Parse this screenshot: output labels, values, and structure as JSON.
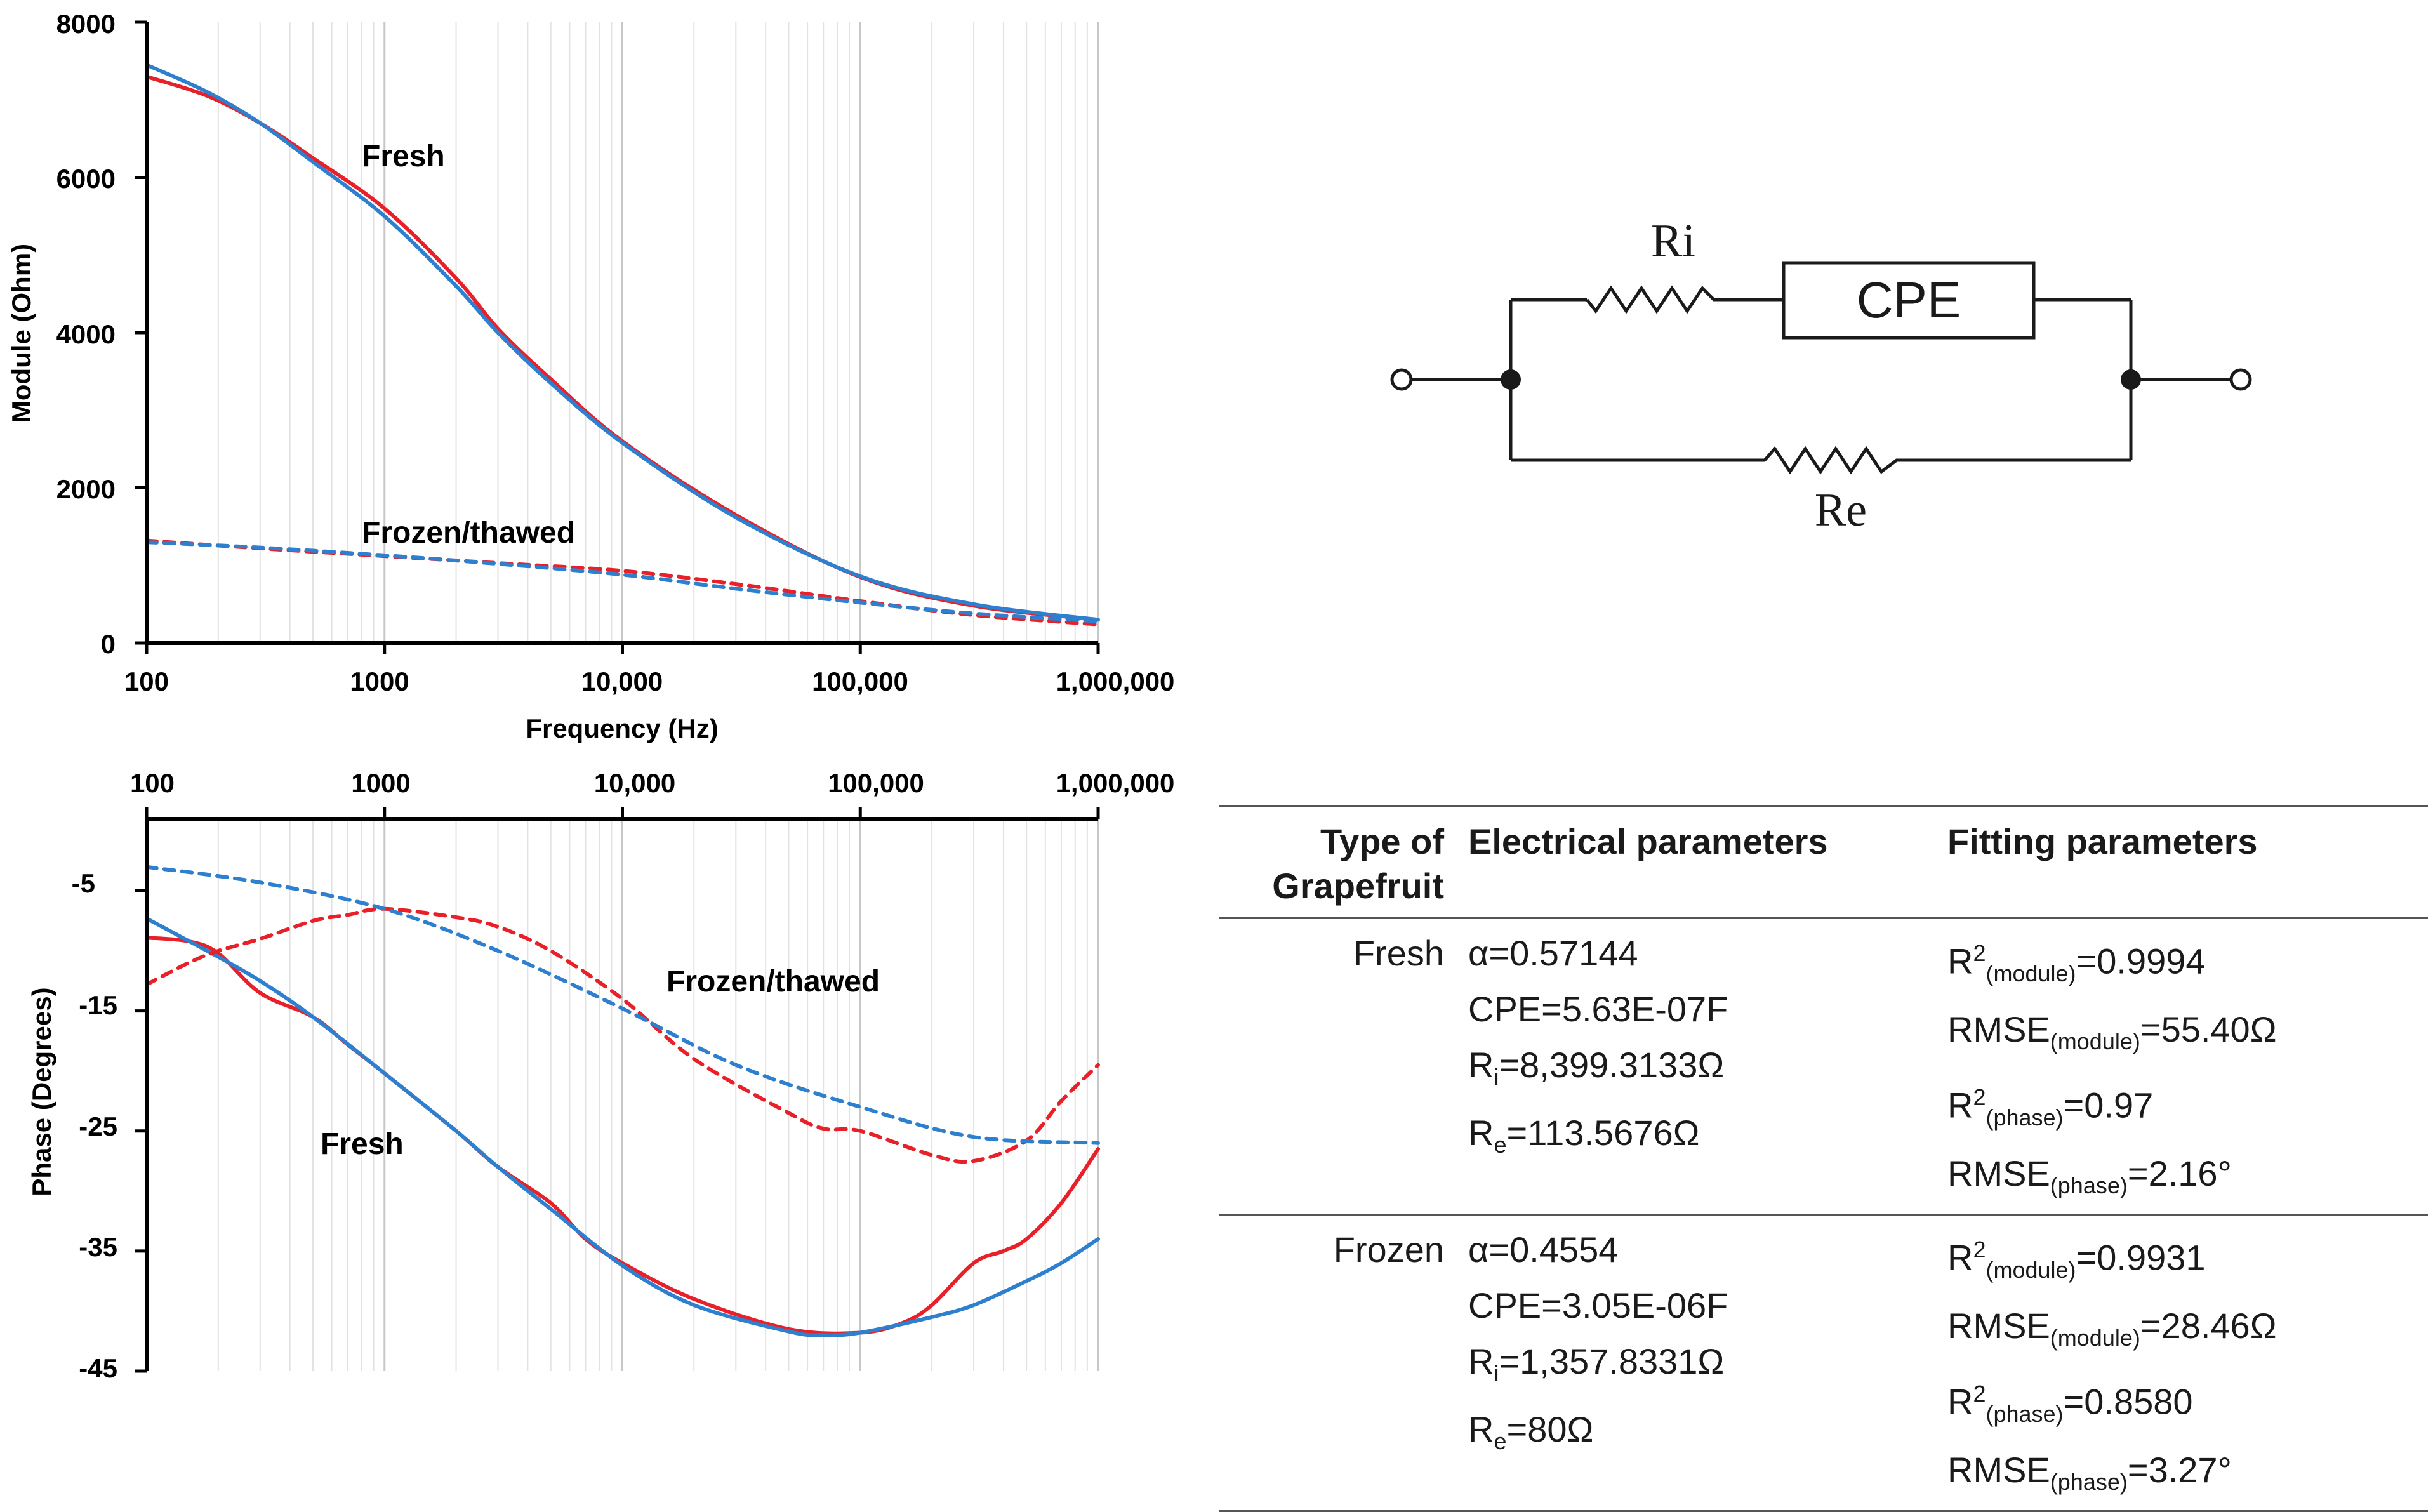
{
  "charts": {
    "module": {
      "ylabel": "Module (Ohm)",
      "xlabel": "Frequency (Hz)",
      "y_ticks": [
        "0",
        "2000",
        "4000",
        "6000",
        "8000"
      ],
      "x_ticks": [
        "100",
        "1000",
        "10,000",
        "100,000",
        "1,000,000"
      ],
      "annotation_fresh": "Fresh",
      "annotation_frozen": "Frozen/thawed"
    },
    "phase": {
      "ylabel": "Phase (Degrees)",
      "y_ticks": [
        "-5",
        "-15",
        "-25",
        "-35",
        "-45"
      ],
      "x_ticks": [
        "100",
        "1000",
        "10,000",
        "100,000",
        "1,000,000"
      ],
      "annotation_fresh": "Fresh",
      "annotation_frozen": "Frozen/thawed"
    }
  },
  "circuit": {
    "ri_label": "Ri",
    "cpe_label": "CPE",
    "re_label": "Re"
  },
  "table": {
    "headers": {
      "type_line1": "Type of",
      "type_line2": "Grapefruit",
      "electrical": "Electrical parameters",
      "fitting": "Fitting parameters"
    },
    "fresh": {
      "type": "Fresh",
      "alpha": "α=0.57144",
      "cpe": "CPE=5.63E-07F",
      "ri_prefix": "R",
      "ri_sub": "i",
      "ri_value": "=8,399.3133Ω",
      "re_prefix": "R",
      "re_sub": "e",
      "re_value": "=113.5676Ω",
      "r2m_prefix": "R",
      "r2m_sup": "2",
      "r2m_sub": "(module)",
      "r2m_value": "=0.9994",
      "rmsem_prefix": "RMSE",
      "rmsem_sub": "(module)",
      "rmsem_value": "=55.40Ω",
      "r2p_prefix": "R",
      "r2p_sup": "2",
      "r2p_sub": "(phase)",
      "r2p_value": "=0.97",
      "rmsep_prefix": "RMSE",
      "rmsep_sub": "(phase)",
      "rmsep_value": "=2.16°"
    },
    "frozen": {
      "type": "Frozen",
      "alpha": "α=0.4554",
      "cpe": "CPE=3.05E-06F",
      "ri_prefix": "R",
      "ri_sub": "i",
      "ri_value": "=1,357.8331Ω",
      "re_prefix": "R",
      "re_sub": "e",
      "re_value": "=80Ω",
      "r2m_prefix": "R",
      "r2m_sup": "2",
      "r2m_sub": "(module)",
      "r2m_value": "=0.9931",
      "rmsem_prefix": "RMSE",
      "rmsem_sub": "(module)",
      "rmsem_value": "=28.46Ω",
      "r2p_prefix": "R",
      "r2p_sup": "2",
      "r2p_sub": "(phase)",
      "r2p_value": "=0.8580",
      "rmsep_prefix": "RMSE",
      "rmsep_sub": "(phase)",
      "rmsep_value": "=3.27°"
    }
  },
  "colors": {
    "measured": "#e8202a",
    "fitted": "#2f7fcf",
    "axis": "#000000",
    "grid": "#d0d0d0"
  },
  "chart_data": [
    {
      "type": "line",
      "title": "",
      "xlabel": "Frequency (Hz)",
      "ylabel": "Module (Ohm)",
      "xscale": "log",
      "xlim": [
        100,
        1000000
      ],
      "ylim": [
        0,
        8000
      ],
      "grid": true,
      "series": [
        {
          "name": "Fresh measured",
          "style": "solid",
          "color": "red",
          "x": [
            100,
            180,
            300,
            500,
            1000,
            2000,
            3000,
            5000,
            10000,
            30000,
            100000,
            300000,
            1000000
          ],
          "y": [
            7300,
            7050,
            6700,
            6250,
            5600,
            4700,
            4050,
            3400,
            2600,
            1650,
            850,
            480,
            300
          ]
        },
        {
          "name": "Fresh fitted",
          "style": "solid",
          "color": "blue",
          "x": [
            100,
            180,
            300,
            500,
            1000,
            2000,
            3000,
            5000,
            10000,
            30000,
            100000,
            300000,
            1000000
          ],
          "y": [
            7450,
            7100,
            6700,
            6200,
            5500,
            4600,
            4000,
            3350,
            2580,
            1620,
            860,
            500,
            300
          ]
        },
        {
          "name": "Frozen/thawed measured",
          "style": "dashed",
          "color": "red",
          "x": [
            100,
            300,
            1000,
            3000,
            10000,
            30000,
            100000,
            300000,
            1000000
          ],
          "y": [
            1320,
            1220,
            1120,
            1030,
            930,
            760,
            540,
            360,
            240
          ]
        },
        {
          "name": "Frozen/thawed fitted",
          "style": "dashed",
          "color": "blue",
          "x": [
            100,
            300,
            1000,
            3000,
            10000,
            30000,
            100000,
            300000,
            1000000
          ],
          "y": [
            1300,
            1230,
            1130,
            1020,
            880,
            700,
            520,
            380,
            280
          ]
        }
      ]
    },
    {
      "type": "line",
      "title": "",
      "xlabel": "",
      "ylabel": "Phase (Degrees)",
      "xscale": "log",
      "xlim": [
        100,
        1000000
      ],
      "ylim": [
        -45,
        1
      ],
      "grid": true,
      "series": [
        {
          "name": "Fresh measured",
          "style": "solid",
          "color": "red",
          "x": [
            100,
            150,
            200,
            300,
            500,
            700,
            1000,
            2000,
            3000,
            5000,
            7000,
            10000,
            20000,
            50000,
            100000,
            150000,
            200000,
            300000,
            400000,
            500000,
            700000,
            1000000
          ],
          "y": [
            -8.9,
            -9.2,
            -10.2,
            -13.5,
            -15.5,
            -17.8,
            -20.2,
            -25,
            -28,
            -31,
            -34,
            -36,
            -39,
            -41.5,
            -41.8,
            -41,
            -39.5,
            -36,
            -35,
            -34,
            -31,
            -26.5
          ]
        },
        {
          "name": "Fresh fitted",
          "style": "solid",
          "color": "blue",
          "x": [
            100,
            200,
            300,
            500,
            1000,
            2000,
            3000,
            5000,
            10000,
            20000,
            50000,
            70000,
            100000,
            200000,
            300000,
            500000,
            700000,
            1000000
          ],
          "y": [
            -7.3,
            -10.5,
            -12.5,
            -15.5,
            -20.2,
            -25,
            -28,
            -31.5,
            -36.2,
            -39.5,
            -41.7,
            -42,
            -41.8,
            -40.5,
            -39.5,
            -37.5,
            -36,
            -34
          ]
        },
        {
          "name": "Frozen/thawed measured",
          "style": "dashed",
          "color": "red",
          "x": [
            100,
            150,
            200,
            300,
            500,
            700,
            1000,
            2000,
            3000,
            5000,
            10000,
            20000,
            50000,
            70000,
            100000,
            200000,
            300000,
            500000,
            700000,
            1000000
          ],
          "y": [
            -12.8,
            -11,
            -10,
            -9,
            -7.5,
            -7,
            -6.5,
            -7.2,
            -8,
            -10,
            -14,
            -19,
            -23.5,
            -24.8,
            -25,
            -27,
            -27.5,
            -25.8,
            -22.5,
            -19.5
          ]
        },
        {
          "name": "Frozen/thawed fitted",
          "style": "dashed",
          "color": "blue",
          "x": [
            100,
            300,
            1000,
            3000,
            10000,
            30000,
            100000,
            300000,
            1000000
          ],
          "y": [
            -3,
            -4.3,
            -6.5,
            -10,
            -14.8,
            -19.5,
            -23,
            -25.5,
            -26
          ]
        }
      ]
    }
  ]
}
